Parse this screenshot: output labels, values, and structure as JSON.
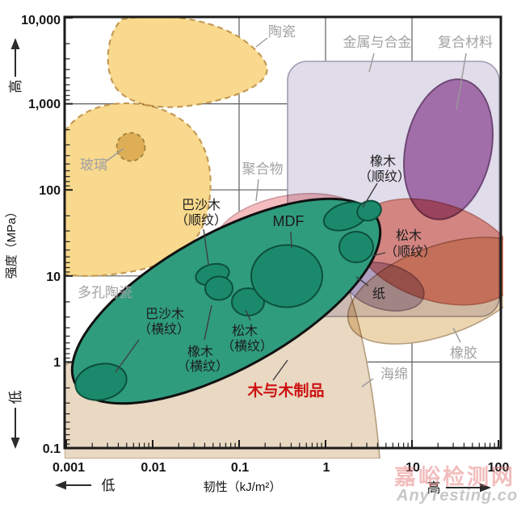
{
  "colors": {
    "wood_green": "#2f9c7d",
    "wood_point": "#1b8a6c",
    "wood_point_stroke": "#0d4f3c",
    "wood_outline": "#111111",
    "ceramic_fill": "#f8d98d",
    "ceramic_dash": "#c49a55",
    "glass_fill": "#e4cd9a",
    "glass_dash": "#a5966f",
    "metals_fill": "#e0dcea",
    "metals_stroke": "#a29ab2",
    "composites_fill": "#b980b8",
    "composites_stroke": "#7c5380",
    "polymers_fill": "#f4bcbe",
    "polymers_stroke": "#cf9aa0",
    "pine_fill": "#f19a8d",
    "pine_stroke": "#c97f72",
    "paper_fill": "#c6b7d1",
    "paper_stroke": "#9c8aa7",
    "rubber_fill": "#ecd6b0",
    "rubber_stroke": "#b59d7f",
    "sponge_fill": "#e9d8c2",
    "sponge_stroke": "#b59d7f",
    "highlight_red": "#cc1111"
  },
  "axes": {
    "y": {
      "title": "强度（MPa）",
      "ticks": [
        "10,000",
        "1,000",
        "100",
        "10",
        "1",
        "0.1"
      ],
      "high": "高",
      "low": "低"
    },
    "x": {
      "title": "韧性（kJ/m²）",
      "ticks": [
        "0.001",
        "0.01",
        "0.1",
        "1",
        "10",
        "100"
      ],
      "low": "低",
      "high": "高"
    }
  },
  "regions": {
    "ceramics": "陶瓷",
    "glass": "玻璃",
    "porous_ceramics": "多孔陶瓷",
    "metals": "金属与合金",
    "composites": "复合材料",
    "polymers": "聚合物",
    "rubber": "橡胶",
    "sponge": "海绵",
    "paper": "纸"
  },
  "wood": {
    "mdf": "MDF",
    "balsa_along": [
      "巴沙木",
      "（顺纹）"
    ],
    "balsa_across": [
      "巴沙木",
      "（横纹）"
    ],
    "oak_along": [
      "橡木",
      "（顺纹）"
    ],
    "oak_across": [
      "橡木",
      "（横纹）"
    ],
    "pine_along": [
      "松木",
      "（顺纹）"
    ],
    "pine_across": [
      "松木",
      "（横纹）"
    ],
    "group_label": "木与木制品"
  },
  "watermark": {
    "cn": "嘉峪检测网",
    "en": "AnyTesting.com"
  },
  "chart_data": {
    "type": "scatter",
    "title": "",
    "xlabel": "韧性（kJ/m²）",
    "ylabel": "强度（MPa）",
    "xscale": "log",
    "yscale": "log",
    "xlim": [
      0.001,
      100
    ],
    "ylim": [
      0.1,
      10000
    ],
    "grid": true,
    "regions": [
      {
        "name": "陶瓷",
        "toughness_kj_m2": [
          0.003,
          0.22
        ],
        "strength_mpa": [
          900,
          10000
        ],
        "style": "orange dashed"
      },
      {
        "name": "玻璃",
        "toughness_kj_m2": [
          0.004,
          0.008
        ],
        "strength_mpa": [
          200,
          450
        ],
        "style": "tan dashed circle"
      },
      {
        "name": "多孔陶瓷",
        "toughness_kj_m2": [
          0.001,
          0.05
        ],
        "strength_mpa": [
          10,
          1000
        ],
        "style": "orange dashed"
      },
      {
        "name": "金属与合金",
        "toughness_kj_m2": [
          0.36,
          100
        ],
        "strength_mpa": [
          3,
          3200
        ],
        "style": "light lavender"
      },
      {
        "name": "复合材料",
        "toughness_kj_m2": [
          8,
          98
        ],
        "strength_mpa": [
          45,
          2000
        ],
        "style": "purple"
      },
      {
        "name": "聚合物",
        "toughness_kj_m2": [
          0.05,
          3
        ],
        "strength_mpa": [
          12,
          90
        ],
        "style": "pink (mostly hidden behind wood)"
      },
      {
        "name": "松木（顺纹）区域",
        "toughness_kj_m2": [
          2.2,
          100
        ],
        "strength_mpa": [
          5,
          80
        ],
        "style": "salmon"
      },
      {
        "name": "纸",
        "toughness_kj_m2": [
          1.7,
          13
        ],
        "strength_mpa": [
          4,
          26
        ],
        "style": "lavender"
      },
      {
        "name": "橡胶",
        "toughness_kj_m2": [
          2,
          100
        ],
        "strength_mpa": [
          2,
          45
        ],
        "style": "tan"
      },
      {
        "name": "海绵",
        "toughness_kj_m2": [
          0.001,
          4
        ],
        "strength_mpa": [
          0.05,
          2
        ],
        "style": "beige"
      },
      {
        "name": "木与木制品",
        "toughness_kj_m2": [
          0.0013,
          3.8
        ],
        "strength_mpa": [
          0.35,
          90
        ],
        "style": "green, black outline"
      }
    ],
    "points": [
      {
        "name": "巴沙木（横纹）",
        "toughness_kj_m2": 0.0025,
        "strength_mpa": 0.6
      },
      {
        "name": "巴沙木（顺纹）",
        "toughness_kj_m2": 0.046,
        "strength_mpa": 11
      },
      {
        "name": "橡木（横纹）",
        "toughness_kj_m2": 0.056,
        "strength_mpa": 6.8
      },
      {
        "name": "松木（横纹）",
        "toughness_kj_m2": 0.12,
        "strength_mpa": 4.8
      },
      {
        "name": "MDF",
        "toughness_kj_m2": 0.36,
        "strength_mpa": 9.8
      },
      {
        "name": "橡木（顺纹）",
        "toughness_kj_m2": 1.7,
        "strength_mpa": 49
      },
      {
        "name": "松木（顺纹）",
        "toughness_kj_m2": 2.3,
        "strength_mpa": 21
      }
    ],
    "legend_position": "none"
  }
}
